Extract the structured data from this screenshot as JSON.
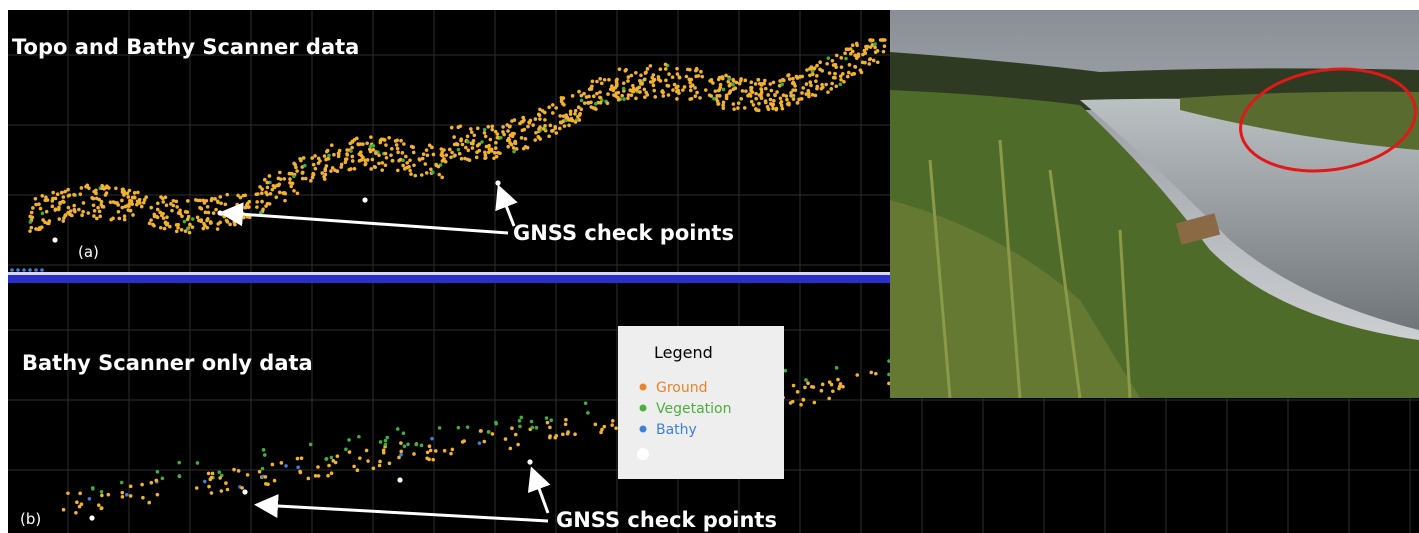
{
  "panel_a": {
    "title": "Topo and Bathy Scanner data",
    "label": "(a)",
    "annotation": "GNSS check points"
  },
  "panel_b": {
    "title": "Bathy Scanner only data",
    "label": "(b)",
    "annotation": "GNSS check points"
  },
  "legend": {
    "title": "Legend",
    "entries": [
      {
        "label": "Ground",
        "color": "#e8842c"
      },
      {
        "label": "Vegetation",
        "color": "#4cae3c"
      },
      {
        "label": "Bathy",
        "color": "#3d7fd8"
      }
    ]
  }
}
